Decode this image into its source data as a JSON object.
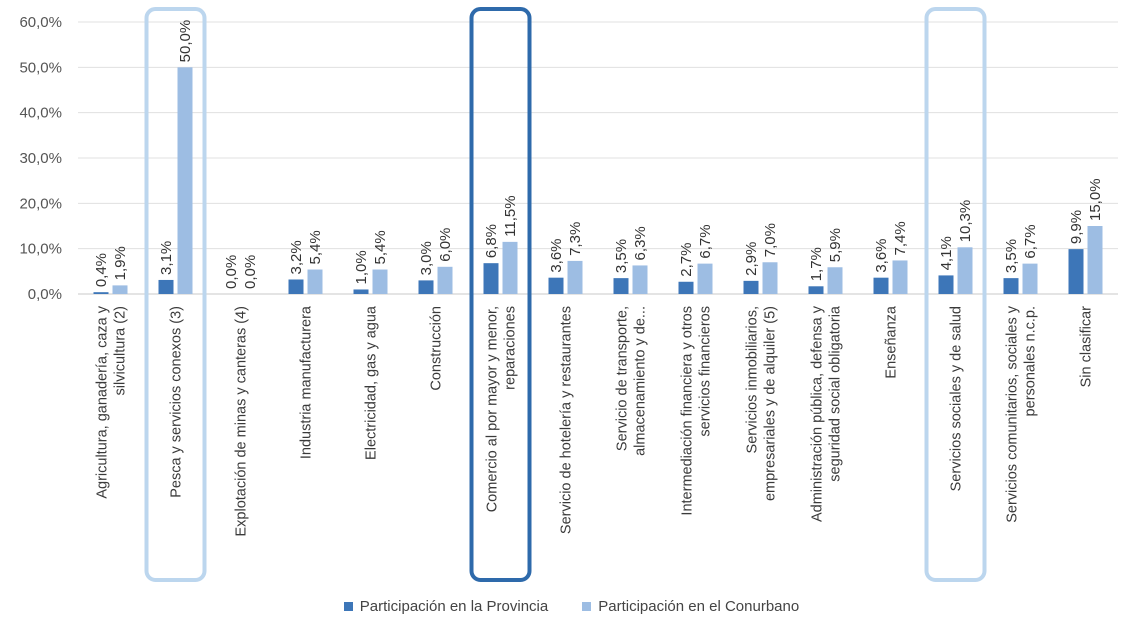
{
  "chart_data": {
    "type": "bar",
    "categories": [
      [
        "Agricultura, ganadería, caza y",
        "silvicultura (2)"
      ],
      [
        "Pesca y servicios conexos (3)"
      ],
      [
        "Explotación de minas y canteras (4)"
      ],
      [
        "Industria manufacturera"
      ],
      [
        "Electricidad, gas y agua"
      ],
      [
        "Construcción"
      ],
      [
        "Comercio al por mayor y menor,",
        "reparaciones"
      ],
      [
        "Servicio de hotelería y restaurantes"
      ],
      [
        "Servicio de transporte,",
        "almacenamiento y de..."
      ],
      [
        "Intermediación financiera y otros",
        "servicios financieros"
      ],
      [
        "Servicios inmobiliarios,",
        "empresariales y de alquiler (5)"
      ],
      [
        "Administración pública, defensa y",
        "seguridad social obligatoria"
      ],
      [
        "Enseñanza"
      ],
      [
        "Servicios sociales y de salud"
      ],
      [
        "Servicios comunitarios, sociales y",
        "personales n.c.p."
      ],
      [
        "Sin clasificar"
      ]
    ],
    "series": [
      {
        "name": "Participación en la Provincia",
        "color": "#3d76b8",
        "values": [
          0.4,
          3.1,
          0.0,
          3.2,
          1.0,
          3.0,
          6.8,
          3.6,
          3.5,
          2.7,
          2.9,
          1.7,
          3.6,
          4.1,
          3.5,
          9.9
        ],
        "labels": [
          "0,4%",
          "3,1%",
          "0,0%",
          "3,2%",
          "1,0%",
          "3,0%",
          "6,8%",
          "3,6%",
          "3,5%",
          "2,7%",
          "2,9%",
          "1,7%",
          "3,6%",
          "4,1%",
          "3,5%",
          "9,9%"
        ]
      },
      {
        "name": "Participación en el Conurbano",
        "color": "#9dbde3",
        "values": [
          1.9,
          50.0,
          0.0,
          5.4,
          5.4,
          6.0,
          11.5,
          7.3,
          6.3,
          6.7,
          7.0,
          5.9,
          7.4,
          10.3,
          6.7,
          15.0
        ],
        "labels": [
          "1,9%",
          "50,0%",
          "0,0%",
          "5,4%",
          "5,4%",
          "6,0%",
          "11,5%",
          "7,3%",
          "6,3%",
          "6,7%",
          "7,0%",
          "5,9%",
          "7,4%",
          "10,3%",
          "6,7%",
          "15,0%"
        ]
      }
    ],
    "y_ticks": [
      "0,0%",
      "10,0%",
      "20,0%",
      "30,0%",
      "40,0%",
      "50,0%",
      "60,0%"
    ],
    "ylim": [
      0,
      60
    ],
    "grid": true,
    "legend": "bottom-center",
    "highlights": [
      {
        "category_index": 1,
        "color": "#bcd6ee"
      },
      {
        "category_index": 6,
        "color": "#2e6aab"
      },
      {
        "category_index": 13,
        "color": "#bcd6ee"
      }
    ]
  }
}
